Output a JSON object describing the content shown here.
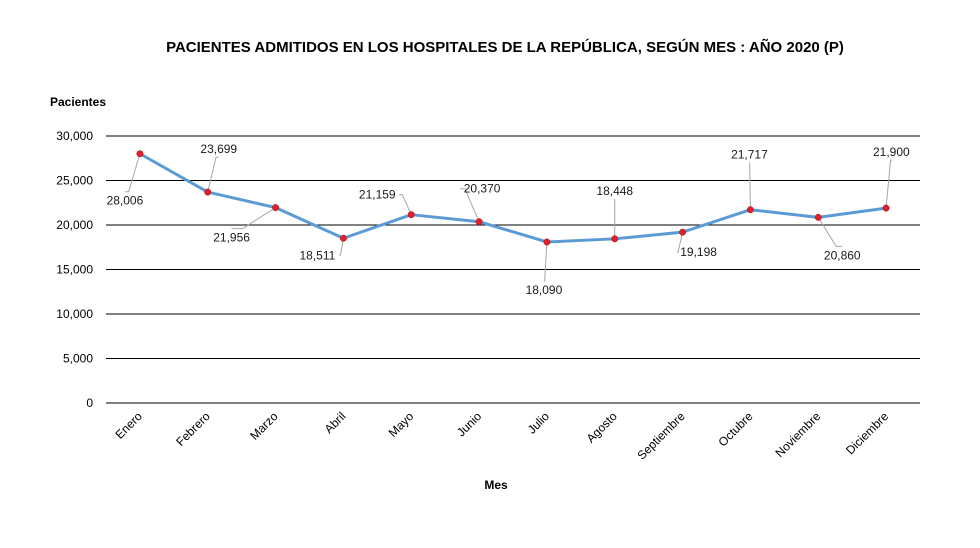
{
  "chart_data": {
    "type": "line",
    "title": "PACIENTES ADMITIDOS EN LOS HOSPITALES DE LA REPÚBLICA, SEGÚN MES : AÑO 2020 (P)",
    "xlabel": "Mes",
    "ylabel": "Pacientes",
    "ylim": [
      0,
      30000
    ],
    "yticks": [
      0,
      5000,
      10000,
      15000,
      20000,
      25000,
      30000
    ],
    "ytick_labels": [
      "0",
      "5,000",
      "10,000",
      "15,000",
      "20,000",
      "25,000",
      "30,000"
    ],
    "grid": true,
    "categories": [
      "Enero",
      "Febrero",
      "Marzo",
      "Abril",
      "Mayo",
      "Junio",
      "Julio",
      "Agosto",
      "Septiembre",
      "Octubre",
      "Noviembre",
      "Diciembre"
    ],
    "series": [
      {
        "name": "Pacientes",
        "color": "#5b9bd5",
        "marker_color": "#e0202a",
        "values": [
          28006,
          23699,
          21956,
          18511,
          21159,
          20370,
          18090,
          18448,
          19198,
          21717,
          20860,
          21900
        ],
        "labels": [
          "28,006",
          "23,699",
          "21,956",
          "18,511",
          "21,159",
          "20,370",
          "18,090",
          "18,448",
          "19,198",
          "21,717",
          "20,860",
          "21,900"
        ]
      }
    ]
  }
}
